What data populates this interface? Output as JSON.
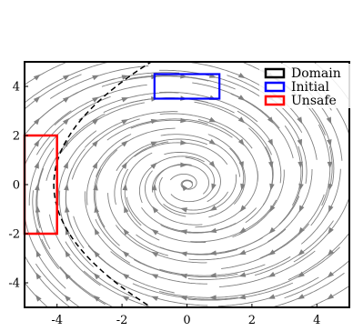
{
  "chart_data": {
    "type": "streamplot",
    "xlim": [
      -5,
      5
    ],
    "ylim": [
      -5,
      5
    ],
    "xticks": [
      "-4",
      "-2",
      "0",
      "2",
      "4"
    ],
    "yticks": [
      "4",
      "2",
      "0",
      "-2",
      "-4"
    ],
    "grid": false,
    "legend_position": "top-right",
    "legend": [
      {
        "label": "Domain",
        "color": "#000000"
      },
      {
        "label": "Initial",
        "color": "#0000ff"
      },
      {
        "label": "Unsafe",
        "color": "#ff0000"
      }
    ],
    "regions": {
      "domain": {
        "x": [
          -5,
          5
        ],
        "y": [
          -5,
          5
        ],
        "color": "#000000"
      },
      "initial": {
        "x": [
          -1,
          1
        ],
        "y": [
          3.5,
          4.5
        ],
        "color": "#0000ff"
      },
      "unsafe": {
        "x": [
          -5,
          -4
        ],
        "y": [
          -2,
          2
        ],
        "color": "#ff0000"
      }
    },
    "barrier_curve": {
      "style": "dashed",
      "color": "#000000",
      "x_at_y0": -4.1
    },
    "vector_field": {
      "description": "stable spiral focus at origin",
      "focus": [
        0,
        0
      ]
    },
    "stream_color": "#808080"
  }
}
